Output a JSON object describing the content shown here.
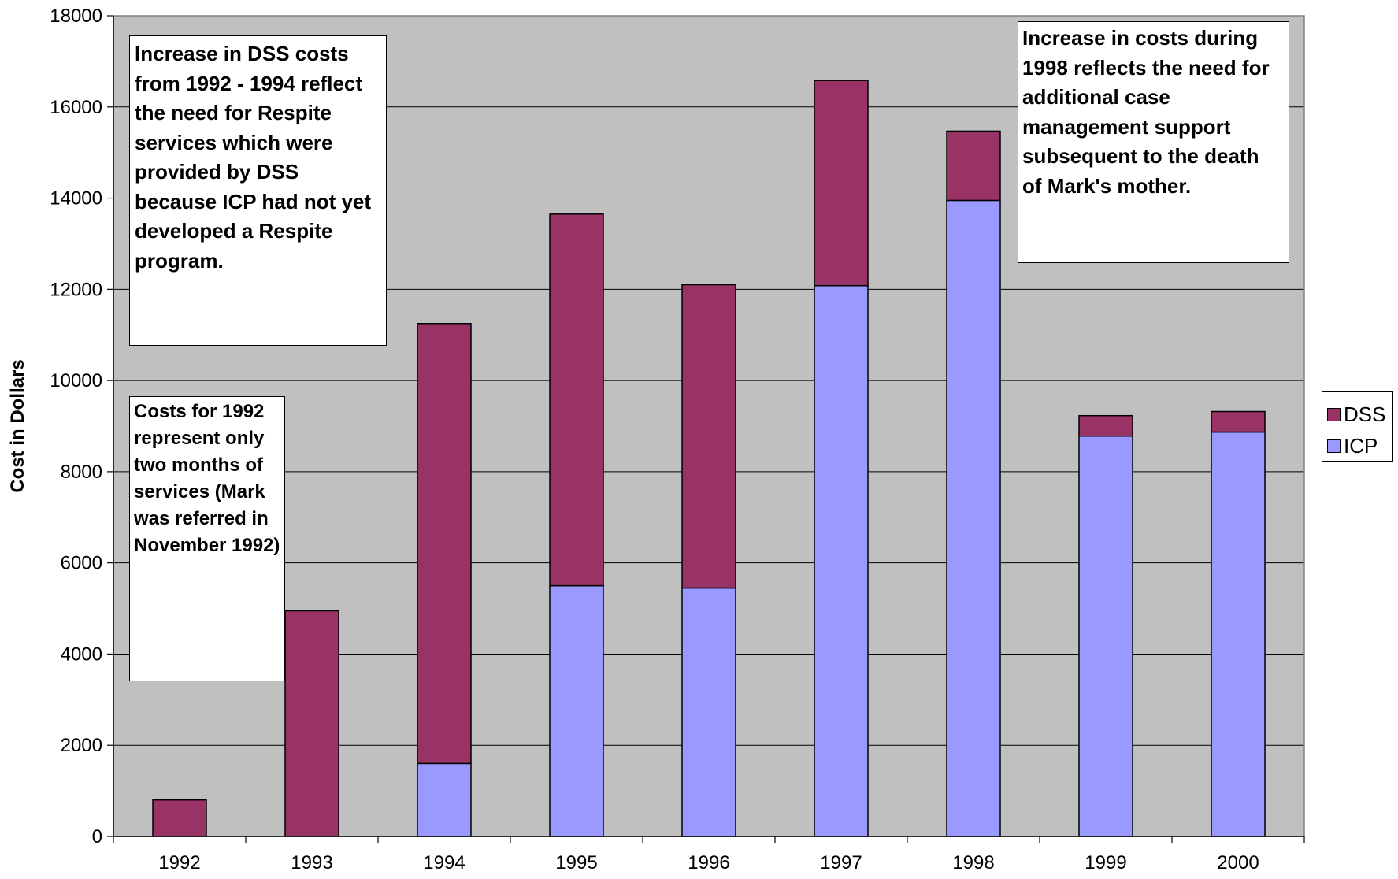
{
  "chart_data": {
    "type": "bar",
    "stacked": true,
    "categories": [
      "1992",
      "1993",
      "1994",
      "1995",
      "1996",
      "1997",
      "1998",
      "1999",
      "2000"
    ],
    "series": [
      {
        "name": "ICP",
        "color": "#9999FF",
        "values": [
          0,
          0,
          1600,
          5500,
          5450,
          12080,
          13950,
          8780,
          8870
        ]
      },
      {
        "name": "DSS",
        "color": "#993366",
        "values": [
          800,
          4950,
          9650,
          8150,
          6650,
          4500,
          1520,
          450,
          450
        ]
      }
    ],
    "ylabel": "Cost in Dollars",
    "xlabel": "",
    "ylim": [
      0,
      18000
    ],
    "yticks": [
      0,
      2000,
      4000,
      6000,
      8000,
      10000,
      12000,
      14000,
      16000,
      18000
    ],
    "yticks_labels": [
      "0",
      "2000",
      "4000",
      "6000",
      "8000",
      "10000",
      "12000",
      "14000",
      "16000",
      "18000"
    ],
    "grid": true,
    "plot_background": "#C0C0C0",
    "legend_position": "right",
    "legend": [
      {
        "label": "DSS",
        "color": "#993366"
      },
      {
        "label": "ICP",
        "color": "#9999FF"
      }
    ],
    "annotations": [
      "Increase in DSS costs\nfrom 1992 - 1994 reflect\nthe need for Respite\nservices which were\nprovided by DSS\nbecause ICP had not yet\ndeveloped a Respite\nprogram.",
      "Costs for 1992\nrepresent only\ntwo months of\nservices (Mark\nwas referred in\nNovember 1992)",
      "Increase in costs during\n1998 reflects the need for\nadditional case\nmanagement support\nsubsequent to the death\nof Mark's mother."
    ]
  }
}
